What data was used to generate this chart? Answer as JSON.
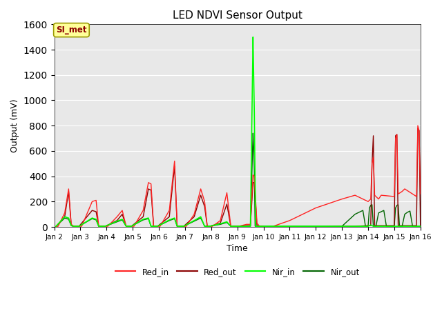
{
  "title": "LED NDVI Sensor Output",
  "xlabel": "Time",
  "ylabel": "Output (mV)",
  "ylim": [
    0,
    1600
  ],
  "yticks": [
    0,
    200,
    400,
    600,
    800,
    1000,
    1200,
    1400,
    1600
  ],
  "xlim": [
    0,
    14
  ],
  "xtick_labels": [
    "Jan 2",
    "Jan 3",
    "Jan 4",
    "Jan 5",
    "Jan 6",
    "Jan 7",
    "Jan 8",
    "Jan 9",
    "Jan 10",
    "Jan 11",
    "Jan 12",
    "Jan 13",
    "Jan 14",
    "Jan 15",
    "Jan 16"
  ],
  "xtick_positions": [
    0,
    1,
    2,
    3,
    4,
    5,
    6,
    7,
    8,
    9,
    10,
    11,
    12,
    13,
    14
  ],
  "color_red_in": "#FF2222",
  "color_red_out": "#8B0000",
  "color_nir_in": "#00FF00",
  "color_nir_out": "#006400",
  "bg_color": "#E8E8E8",
  "annotation_text": "SI_met",
  "annotation_box_color": "#FFFF99",
  "annotation_text_color": "#8B0000",
  "legend_labels": [
    "Red_in",
    "Red_out",
    "Nir_in",
    "Nir_out"
  ],
  "red_in": [
    [
      0.05,
      0
    ],
    [
      0.15,
      5
    ],
    [
      0.4,
      110
    ],
    [
      0.55,
      300
    ],
    [
      0.65,
      20
    ],
    [
      0.75,
      5
    ],
    [
      0.95,
      5
    ],
    [
      1.05,
      5
    ],
    [
      1.45,
      200
    ],
    [
      1.6,
      210
    ],
    [
      1.7,
      5
    ],
    [
      1.95,
      5
    ],
    [
      2.05,
      5
    ],
    [
      2.4,
      80
    ],
    [
      2.6,
      130
    ],
    [
      2.75,
      5
    ],
    [
      2.95,
      5
    ],
    [
      3.05,
      5
    ],
    [
      3.4,
      130
    ],
    [
      3.6,
      350
    ],
    [
      3.7,
      340
    ],
    [
      3.8,
      5
    ],
    [
      3.95,
      5
    ],
    [
      4.05,
      5
    ],
    [
      4.4,
      130
    ],
    [
      4.6,
      520
    ],
    [
      4.7,
      5
    ],
    [
      4.95,
      5
    ],
    [
      5.05,
      5
    ],
    [
      5.35,
      100
    ],
    [
      5.6,
      300
    ],
    [
      5.75,
      200
    ],
    [
      5.85,
      5
    ],
    [
      5.95,
      5
    ],
    [
      6.05,
      5
    ],
    [
      6.35,
      50
    ],
    [
      6.6,
      270
    ],
    [
      6.75,
      5
    ],
    [
      6.95,
      5
    ],
    [
      7.05,
      5
    ],
    [
      7.35,
      20
    ],
    [
      7.5,
      20
    ],
    [
      7.6,
      410
    ],
    [
      7.65,
      400
    ],
    [
      7.75,
      30
    ],
    [
      7.85,
      5
    ],
    [
      7.95,
      5
    ],
    [
      8.05,
      0
    ],
    [
      8.3,
      0
    ],
    [
      9.0,
      50
    ],
    [
      10.0,
      150
    ],
    [
      11.0,
      220
    ],
    [
      11.5,
      250
    ],
    [
      12.0,
      200
    ],
    [
      12.1,
      220
    ],
    [
      12.15,
      500
    ],
    [
      12.2,
      550
    ],
    [
      12.25,
      250
    ],
    [
      12.4,
      220
    ],
    [
      12.5,
      250
    ],
    [
      13.0,
      240
    ],
    [
      13.05,
      700
    ],
    [
      13.1,
      730
    ],
    [
      13.15,
      260
    ],
    [
      13.3,
      280
    ],
    [
      13.4,
      300
    ],
    [
      13.85,
      240
    ],
    [
      13.9,
      800
    ],
    [
      13.95,
      760
    ],
    [
      14.0,
      260
    ],
    [
      14.05,
      300
    ],
    [
      14.15,
      430
    ]
  ],
  "red_out": [
    [
      0.05,
      0
    ],
    [
      0.4,
      80
    ],
    [
      0.55,
      280
    ],
    [
      0.65,
      10
    ],
    [
      0.75,
      5
    ],
    [
      0.95,
      5
    ],
    [
      1.45,
      130
    ],
    [
      1.6,
      120
    ],
    [
      1.7,
      5
    ],
    [
      1.95,
      5
    ],
    [
      2.4,
      50
    ],
    [
      2.6,
      100
    ],
    [
      2.75,
      5
    ],
    [
      2.95,
      5
    ],
    [
      3.4,
      80
    ],
    [
      3.6,
      300
    ],
    [
      3.7,
      290
    ],
    [
      3.8,
      5
    ],
    [
      3.95,
      5
    ],
    [
      4.4,
      80
    ],
    [
      4.6,
      480
    ],
    [
      4.7,
      5
    ],
    [
      4.95,
      5
    ],
    [
      5.35,
      80
    ],
    [
      5.6,
      250
    ],
    [
      5.75,
      160
    ],
    [
      5.85,
      5
    ],
    [
      5.95,
      5
    ],
    [
      6.35,
      30
    ],
    [
      6.6,
      180
    ],
    [
      6.75,
      5
    ],
    [
      6.95,
      5
    ],
    [
      7.35,
      10
    ],
    [
      7.5,
      10
    ],
    [
      7.6,
      350
    ],
    [
      7.65,
      350
    ],
    [
      7.75,
      10
    ],
    [
      7.85,
      5
    ],
    [
      7.95,
      5
    ],
    [
      8.05,
      0
    ],
    [
      8.3,
      0
    ],
    [
      9.0,
      0
    ],
    [
      10.0,
      0
    ],
    [
      11.0,
      5
    ],
    [
      11.5,
      5
    ],
    [
      12.0,
      10
    ],
    [
      12.1,
      10
    ],
    [
      12.15,
      500
    ],
    [
      12.2,
      720
    ],
    [
      12.25,
      10
    ],
    [
      12.4,
      10
    ],
    [
      12.5,
      10
    ],
    [
      13.0,
      10
    ],
    [
      13.05,
      720
    ],
    [
      13.1,
      730
    ],
    [
      13.15,
      10
    ],
    [
      13.3,
      10
    ],
    [
      13.4,
      10
    ],
    [
      13.85,
      10
    ],
    [
      13.9,
      780
    ],
    [
      13.95,
      760
    ],
    [
      14.0,
      10
    ],
    [
      14.05,
      10
    ],
    [
      14.15,
      10
    ]
  ],
  "nir_in": [
    [
      0.05,
      0
    ],
    [
      0.4,
      80
    ],
    [
      0.55,
      70
    ],
    [
      0.65,
      10
    ],
    [
      0.75,
      5
    ],
    [
      0.95,
      5
    ],
    [
      1.45,
      70
    ],
    [
      1.6,
      60
    ],
    [
      1.7,
      5
    ],
    [
      1.95,
      5
    ],
    [
      2.4,
      45
    ],
    [
      2.6,
      60
    ],
    [
      2.75,
      5
    ],
    [
      2.95,
      5
    ],
    [
      3.4,
      60
    ],
    [
      3.6,
      70
    ],
    [
      3.7,
      5
    ],
    [
      3.95,
      5
    ],
    [
      4.4,
      55
    ],
    [
      4.6,
      70
    ],
    [
      4.7,
      5
    ],
    [
      4.95,
      5
    ],
    [
      5.35,
      50
    ],
    [
      5.6,
      80
    ],
    [
      5.75,
      5
    ],
    [
      5.95,
      5
    ],
    [
      6.35,
      25
    ],
    [
      6.6,
      40
    ],
    [
      6.75,
      5
    ],
    [
      6.95,
      5
    ],
    [
      7.35,
      5
    ],
    [
      7.5,
      5
    ],
    [
      7.6,
      1500
    ],
    [
      7.62,
      1260
    ],
    [
      7.65,
      900
    ],
    [
      7.7,
      5
    ],
    [
      7.95,
      5
    ],
    [
      8.05,
      5
    ],
    [
      9.0,
      5
    ],
    [
      10.0,
      5
    ],
    [
      11.0,
      5
    ],
    [
      11.5,
      5
    ],
    [
      12.0,
      5
    ],
    [
      12.1,
      15
    ],
    [
      12.2,
      5
    ],
    [
      12.3,
      5
    ],
    [
      13.0,
      5
    ],
    [
      13.1,
      5
    ],
    [
      13.2,
      5
    ],
    [
      14.0,
      5
    ],
    [
      14.15,
      5
    ]
  ],
  "nir_out": [
    [
      0.05,
      0
    ],
    [
      0.4,
      70
    ],
    [
      0.55,
      60
    ],
    [
      0.65,
      10
    ],
    [
      0.75,
      5
    ],
    [
      0.95,
      5
    ],
    [
      1.45,
      65
    ],
    [
      1.6,
      55
    ],
    [
      1.7,
      5
    ],
    [
      1.95,
      5
    ],
    [
      2.4,
      40
    ],
    [
      2.6,
      55
    ],
    [
      2.75,
      5
    ],
    [
      2.95,
      5
    ],
    [
      3.4,
      55
    ],
    [
      3.6,
      65
    ],
    [
      3.7,
      5
    ],
    [
      3.95,
      5
    ],
    [
      4.4,
      50
    ],
    [
      4.6,
      65
    ],
    [
      4.7,
      5
    ],
    [
      4.95,
      5
    ],
    [
      5.35,
      45
    ],
    [
      5.6,
      70
    ],
    [
      5.75,
      5
    ],
    [
      5.95,
      5
    ],
    [
      6.35,
      20
    ],
    [
      6.6,
      35
    ],
    [
      6.75,
      5
    ],
    [
      6.95,
      5
    ],
    [
      7.35,
      5
    ],
    [
      7.5,
      5
    ],
    [
      7.6,
      740
    ],
    [
      7.62,
      640
    ],
    [
      7.65,
      450
    ],
    [
      7.68,
      5
    ],
    [
      7.95,
      5
    ],
    [
      8.05,
      5
    ],
    [
      9.0,
      5
    ],
    [
      10.0,
      5
    ],
    [
      11.0,
      5
    ],
    [
      11.5,
      100
    ],
    [
      11.6,
      110
    ],
    [
      11.7,
      120
    ],
    [
      11.8,
      130
    ],
    [
      11.9,
      5
    ],
    [
      12.0,
      5
    ],
    [
      12.05,
      150
    ],
    [
      12.1,
      170
    ],
    [
      12.15,
      175
    ],
    [
      12.2,
      5
    ],
    [
      12.3,
      5
    ],
    [
      12.4,
      110
    ],
    [
      12.5,
      120
    ],
    [
      12.6,
      130
    ],
    [
      12.7,
      5
    ],
    [
      13.0,
      5
    ],
    [
      13.05,
      150
    ],
    [
      13.1,
      170
    ],
    [
      13.15,
      175
    ],
    [
      13.2,
      5
    ],
    [
      13.3,
      5
    ],
    [
      13.4,
      100
    ],
    [
      13.5,
      115
    ],
    [
      13.6,
      125
    ],
    [
      13.7,
      5
    ],
    [
      14.0,
      5
    ],
    [
      14.05,
      90
    ],
    [
      14.1,
      95
    ],
    [
      14.15,
      90
    ],
    [
      14.2,
      5
    ]
  ]
}
